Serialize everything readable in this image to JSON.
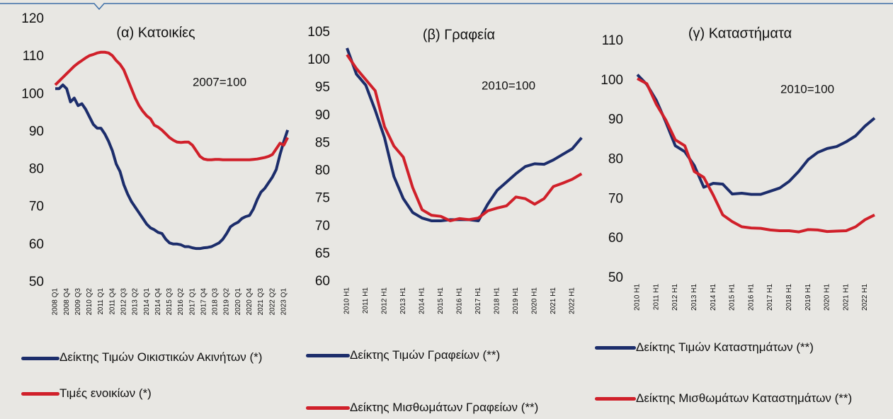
{
  "chart_data": [
    {
      "type": "line",
      "title": "(α) Κατοικίες",
      "annotation": "2007=100",
      "categories": [
        "2008 Q1",
        null,
        null,
        "2008 Q4",
        null,
        null,
        "2009 Q3",
        null,
        null,
        "2010 Q2",
        null,
        null,
        "2011 Q1",
        null,
        null,
        "2011 Q4",
        null,
        null,
        "2012 Q3",
        null,
        null,
        "2013 Q2",
        null,
        null,
        "2014 Q1",
        null,
        null,
        "2014 Q4",
        null,
        null,
        "2015 Q3",
        null,
        null,
        "2016 Q2",
        null,
        null,
        "2017 Q1",
        null,
        null,
        "2017 Q4",
        null,
        null,
        "2018 Q3",
        null,
        null,
        "2019 Q2",
        null,
        null,
        "2020 Q1",
        null,
        null,
        "2020 Q4",
        null,
        null,
        "2021 Q3",
        null,
        null,
        "2022 Q2",
        null,
        null,
        "2023 Q1",
        null
      ],
      "series": [
        {
          "name": "Δείκτης Τιμών Οικιστικών Ακινήτων (*)",
          "color": "#1c2d6b",
          "values": [
            101.5,
            101.5,
            102.5,
            101.5,
            98,
            99,
            97,
            97.5,
            96,
            94,
            92,
            91,
            91,
            89.5,
            87.5,
            85,
            81.5,
            79.5,
            76,
            73.5,
            71.5,
            70,
            68.5,
            67,
            65.5,
            64.5,
            64,
            63.3,
            63,
            61.5,
            60.5,
            60.2,
            60.2,
            60,
            59.5,
            59.5,
            59.2,
            59,
            59,
            59.2,
            59.3,
            59.5,
            60,
            60.5,
            61.5,
            63,
            64.8,
            65.5,
            66,
            67,
            67.5,
            67.8,
            69.5,
            72,
            74,
            75,
            76.5,
            78,
            80,
            84,
            87.5,
            90.5
          ]
        },
        {
          "name": "Τιμές ενοικίων (*)",
          "color": "#d0202a",
          "values": [
            102.5,
            103.5,
            104.5,
            105.5,
            106.5,
            107.5,
            108.3,
            109,
            109.7,
            110.3,
            110.6,
            111,
            111.2,
            111.2,
            111,
            110.3,
            109,
            108,
            106.5,
            104,
            101.5,
            99,
            97,
            95.5,
            94.3,
            93.5,
            91.8,
            91.3,
            90.5,
            89.5,
            88.5,
            87.8,
            87.3,
            87.2,
            87.3,
            87.3,
            86.5,
            85,
            83.5,
            82.8,
            82.6,
            82.6,
            82.7,
            82.7,
            82.6,
            82.6,
            82.6,
            82.6,
            82.6,
            82.6,
            82.6,
            82.6,
            82.7,
            82.8,
            83,
            83.2,
            83.5,
            84,
            85.5,
            87,
            86.5,
            88.5
          ]
        }
      ],
      "ylim": [
        50,
        120
      ],
      "yticks": [
        50,
        60,
        70,
        80,
        90,
        100,
        110,
        120
      ]
    },
    {
      "type": "line",
      "title": "(β) Γραφεία",
      "annotation": "2010=100",
      "categories": [
        "2010 H1",
        null,
        "2011 H1",
        null,
        "2012 H1",
        null,
        "2013 H1",
        null,
        "2014 H1",
        null,
        "2015 H1",
        null,
        "2016 H1",
        null,
        "2017 H1",
        null,
        "2018 H1",
        null,
        "2019 H1",
        null,
        "2020 H1",
        null,
        "2021 H1",
        null,
        "2022 H1",
        null
      ],
      "series": [
        {
          "name": "Δείκτης Τιμών Γραφείων (**)",
          "color": "#1c2d6b",
          "values": [
            102.2,
            97.5,
            95.5,
            91,
            86,
            79,
            75,
            72.5,
            71.5,
            71,
            71,
            71.2,
            71.2,
            71.2,
            71,
            74,
            76.5,
            78,
            79.5,
            80.8,
            81.3,
            81.2,
            82,
            83,
            84,
            86
          ]
        },
        {
          "name": "Δείκτης Μισθωμάτων Γραφείων (**)",
          "color": "#d0202a",
          "values": [
            101,
            98.5,
            96.5,
            94.5,
            88,
            84.5,
            82.5,
            77,
            73,
            72,
            71.8,
            71,
            71.4,
            71.2,
            71.5,
            72.8,
            73.3,
            73.7,
            75.3,
            75,
            74,
            75,
            77.2,
            77.8,
            78.5,
            79.5
          ]
        }
      ],
      "ylim": [
        60,
        105
      ],
      "yticks": [
        60,
        65,
        70,
        75,
        80,
        85,
        90,
        95,
        100,
        105
      ]
    },
    {
      "type": "line",
      "title": "(γ) Καταστήματα",
      "annotation": "2010=100",
      "categories": [
        "2010 H1",
        null,
        "2011 H1",
        null,
        "2012 H1",
        null,
        "2013 H1",
        null,
        "2014 H1",
        null,
        "2015 H1",
        null,
        "2016 H1",
        null,
        "2017 H1",
        null,
        "2018 H1",
        null,
        "2019 H1",
        null,
        "2020 H1",
        null,
        "2021 H1",
        null,
        "2022 H1",
        null
      ],
      "series": [
        {
          "name": "Δείκτης Τιμών Καταστημάτων (**)",
          "color": "#1c2d6b",
          "values": [
            101.5,
            99,
            95,
            89.5,
            83.5,
            82,
            78.5,
            73,
            74,
            73.8,
            71.3,
            71.5,
            71.2,
            71.2,
            72,
            72.8,
            74.5,
            77,
            80,
            81.8,
            82.8,
            83.3,
            84.5,
            86,
            88.5,
            90.5
          ]
        },
        {
          "name": "Δείκτης Μισθωμάτων Καταστημάτων (**)",
          "color": "#d0202a",
          "values": [
            100.5,
            99.2,
            94,
            90,
            85,
            83.5,
            77,
            75.5,
            71,
            66,
            64.3,
            63,
            62.7,
            62.6,
            62.2,
            62,
            62,
            61.7,
            62.3,
            62.2,
            61.8,
            61.9,
            62,
            63,
            64.8,
            66
          ]
        }
      ],
      "ylim": [
        50,
        110
      ],
      "yticks": [
        50,
        60,
        70,
        80,
        90,
        100,
        110
      ]
    }
  ]
}
